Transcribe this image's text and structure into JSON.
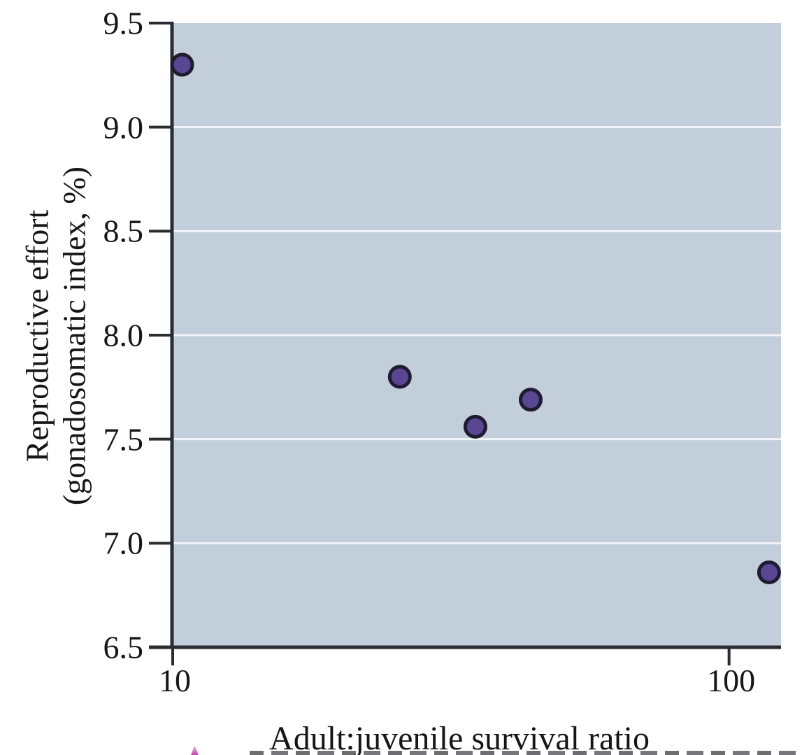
{
  "chart_data": {
    "type": "scatter",
    "title": "",
    "xlabel": "Adult:juvenile survival ratio",
    "ylabel": "Reproductive effort (gonadosomatic index, %)",
    "ylabel_lines": [
      "Reproductive effort",
      "(gonadosomatic index, %)"
    ],
    "x_scale": "log10",
    "y_scale": "linear",
    "xlim": [
      10,
      124
    ],
    "ylim": [
      6.5,
      9.5
    ],
    "x_ticks": [
      {
        "value": 10,
        "label": "10"
      },
      {
        "value": 100,
        "label": "100"
      }
    ],
    "y_ticks": [
      {
        "value": 9.5,
        "label": "9.5"
      },
      {
        "value": 9.0,
        "label": "9.0"
      },
      {
        "value": 8.5,
        "label": "8.5"
      },
      {
        "value": 8.0,
        "label": "8.0"
      },
      {
        "value": 7.5,
        "label": "7.5"
      },
      {
        "value": 7.0,
        "label": "7.0"
      },
      {
        "value": 6.5,
        "label": "6.5"
      }
    ],
    "grid": {
      "horizontal": true,
      "vertical": false,
      "note": "white horizontal gridlines at interior y ticks"
    },
    "legend": "none",
    "points": [
      {
        "x": 10.4,
        "y": 9.3
      },
      {
        "x": 25.6,
        "y": 7.8
      },
      {
        "x": 35,
        "y": 7.56
      },
      {
        "x": 44,
        "y": 7.69
      },
      {
        "x": 118,
        "y": 6.86
      }
    ],
    "colors": {
      "plot_background": "#c3cedb",
      "gridline": "#f2f5f8",
      "axis": "#2b2b33",
      "point_fill": "#5a4794",
      "point_stroke": "#1f1c31",
      "text": "#161616",
      "artifact_magenta": "#c04aae"
    }
  }
}
